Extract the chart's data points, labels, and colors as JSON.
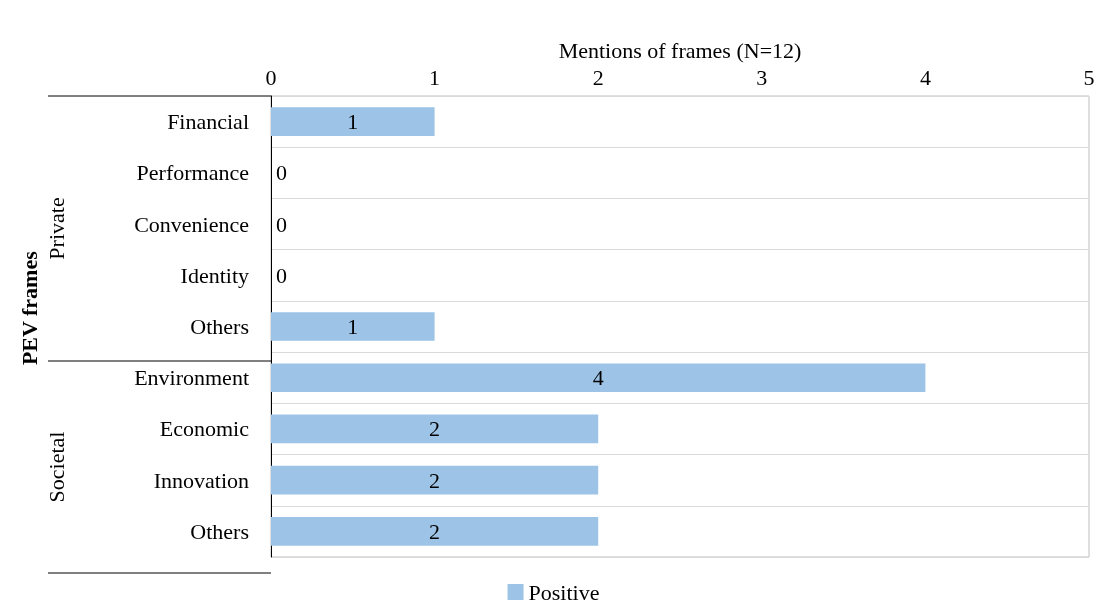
{
  "chart_data": {
    "type": "bar",
    "orientation": "horizontal",
    "xlabel": "Mentions of frames (N=12)",
    "ylabel": "PEV frames",
    "categories": [
      "Financial",
      "Performance",
      "Convenience",
      "Identity",
      "Others",
      "Environment",
      "Economic",
      "Innovation",
      "Others"
    ],
    "series": [
      {
        "name": "Positive",
        "color": "#9dc3e6",
        "values": [
          1,
          0,
          0,
          0,
          1,
          4,
          2,
          2,
          2
        ]
      }
    ],
    "xlim": [
      0,
      5
    ],
    "xticks": [
      0,
      1,
      2,
      3,
      4,
      5
    ],
    "annotations": [
      "Private",
      "Societal"
    ],
    "data_labels": true,
    "grid": "y",
    "legend": "bottom"
  }
}
